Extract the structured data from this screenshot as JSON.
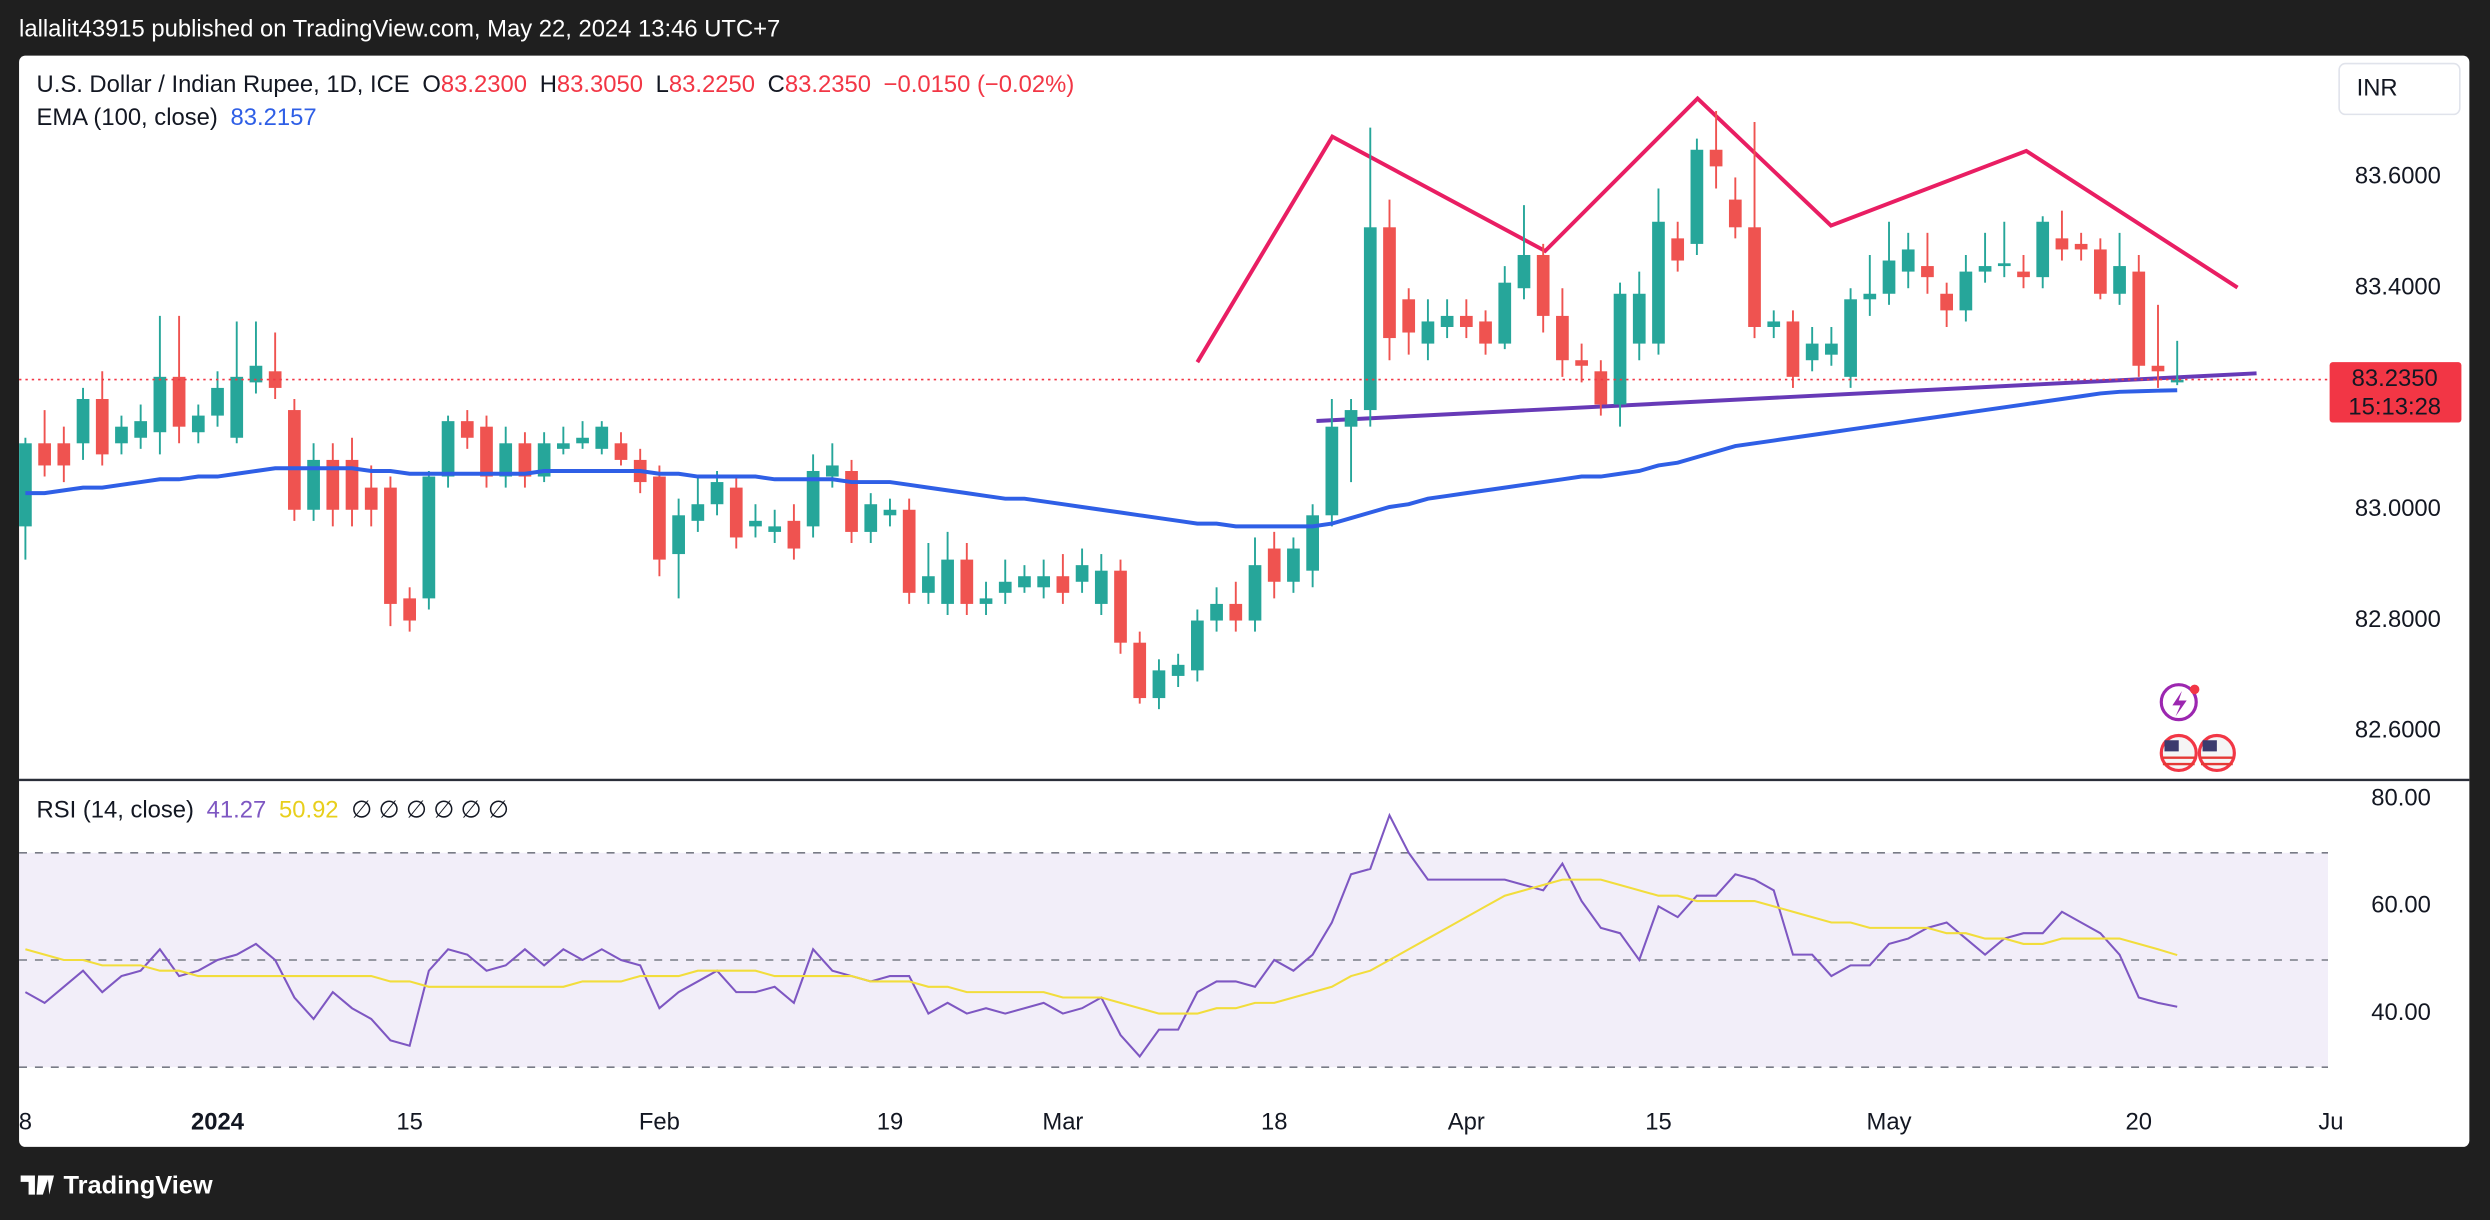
{
  "header": {
    "published": "lallalit43915 published on TradingView.com, May 22, 2024 13:46 UTC+7",
    "brand": "TradingView"
  },
  "chart_data": [
    {
      "type": "candlestick",
      "title": "U.S. Dollar / Indian Rupee, 1D, ICE",
      "ohlc_keys": [
        "O",
        "H",
        "L",
        "C"
      ],
      "ohlc_labels": [
        "83.2300",
        "83.3050",
        "83.2250",
        "83.2350"
      ],
      "change_label": "−0.0150 (−0.02%)",
      "currency": "INR",
      "countdown": "15:13:28",
      "up_color": "#26a69a",
      "down_color": "#ef5350",
      "open": [
        82.97,
        83.12,
        83.12,
        83.12,
        83.2,
        83.12,
        83.13,
        83.14,
        83.24,
        83.14,
        83.17,
        83.13,
        83.23,
        83.25,
        83.18,
        83.0,
        83.09,
        83.09,
        83.04,
        83.04,
        82.84,
        82.84,
        83.06,
        83.16,
        83.15,
        83.06,
        83.12,
        83.06,
        83.11,
        83.12,
        83.11,
        83.12,
        83.09,
        83.06,
        82.92,
        82.98,
        83.01,
        83.04,
        82.97,
        82.96,
        82.98,
        82.97,
        83.06,
        83.07,
        82.96,
        82.99,
        83.0,
        82.85,
        82.83,
        82.91,
        82.83,
        82.85,
        82.86,
        82.86,
        82.88,
        82.87,
        82.83,
        82.89,
        82.76,
        82.66,
        82.7,
        82.71,
        82.8,
        82.83,
        82.8,
        82.93,
        82.87,
        82.89,
        82.99,
        83.15,
        83.18,
        83.51,
        83.38,
        83.3,
        83.33,
        83.35,
        83.34,
        83.3,
        83.4,
        83.46,
        83.35,
        83.27,
        83.25,
        83.19,
        83.3,
        83.3,
        83.49,
        83.48,
        83.65,
        83.56,
        83.51,
        83.33,
        83.34,
        83.27,
        83.28,
        83.24,
        83.38,
        83.39,
        83.43,
        83.44,
        83.39,
        83.36,
        83.43,
        83.44,
        83.43,
        83.42,
        83.49,
        83.48,
        83.47,
        83.39,
        83.43,
        83.26,
        83.23
      ],
      "high": [
        83.13,
        83.18,
        83.15,
        83.22,
        83.25,
        83.17,
        83.19,
        83.35,
        83.35,
        83.19,
        83.25,
        83.34,
        83.34,
        83.32,
        83.2,
        83.12,
        83.12,
        83.13,
        83.08,
        83.06,
        82.86,
        83.07,
        83.17,
        83.18,
        83.17,
        83.15,
        83.14,
        83.14,
        83.15,
        83.16,
        83.16,
        83.14,
        83.11,
        83.08,
        83.02,
        83.06,
        83.07,
        83.06,
        83.01,
        83.0,
        83.01,
        83.1,
        83.12,
        83.09,
        83.03,
        83.02,
        83.02,
        82.94,
        82.96,
        82.94,
        82.87,
        82.91,
        82.9,
        82.91,
        82.92,
        82.93,
        82.92,
        82.91,
        82.78,
        82.73,
        82.74,
        82.82,
        82.86,
        82.87,
        82.95,
        82.96,
        82.95,
        83.01,
        83.2,
        83.2,
        83.69,
        83.56,
        83.4,
        83.38,
        83.38,
        83.38,
        83.36,
        83.44,
        83.55,
        83.48,
        83.4,
        83.3,
        83.27,
        83.41,
        83.43,
        83.58,
        83.52,
        83.67,
        83.72,
        83.6,
        83.7,
        83.36,
        83.36,
        83.33,
        83.33,
        83.4,
        83.46,
        83.52,
        83.5,
        83.5,
        83.41,
        83.46,
        83.5,
        83.52,
        83.46,
        83.53,
        83.54,
        83.5,
        83.49,
        83.5,
        83.46,
        83.37,
        83.305
      ],
      "low": [
        82.91,
        83.06,
        83.05,
        83.09,
        83.08,
        83.1,
        83.11,
        83.1,
        83.12,
        83.12,
        83.15,
        83.12,
        83.21,
        83.2,
        82.98,
        82.98,
        82.97,
        82.97,
        82.97,
        82.79,
        82.78,
        82.82,
        83.04,
        83.11,
        83.04,
        83.04,
        83.04,
        83.05,
        83.1,
        83.11,
        83.1,
        83.08,
        83.03,
        82.88,
        82.84,
        82.96,
        82.99,
        82.93,
        82.95,
        82.94,
        82.91,
        82.95,
        83.04,
        82.94,
        82.94,
        82.97,
        82.83,
        82.83,
        82.81,
        82.81,
        82.81,
        82.83,
        82.85,
        82.84,
        82.83,
        82.85,
        82.81,
        82.74,
        82.65,
        82.64,
        82.68,
        82.69,
        82.78,
        82.78,
        82.78,
        82.84,
        82.85,
        82.86,
        82.97,
        83.05,
        83.15,
        83.27,
        83.28,
        83.27,
        83.31,
        83.31,
        83.28,
        83.29,
        83.38,
        83.32,
        83.24,
        83.23,
        83.17,
        83.15,
        83.27,
        83.28,
        83.43,
        83.46,
        83.58,
        83.49,
        83.31,
        83.31,
        83.22,
        83.25,
        83.26,
        83.22,
        83.35,
        83.37,
        83.4,
        83.39,
        83.33,
        83.34,
        83.41,
        83.42,
        83.4,
        83.4,
        83.45,
        83.45,
        83.38,
        83.37,
        83.24,
        83.22,
        83.225
      ],
      "close": [
        83.12,
        83.08,
        83.08,
        83.2,
        83.1,
        83.15,
        83.16,
        83.24,
        83.15,
        83.17,
        83.22,
        83.24,
        83.26,
        83.22,
        83.0,
        83.09,
        83.0,
        83.0,
        83.0,
        82.83,
        82.8,
        83.06,
        83.16,
        83.13,
        83.06,
        83.12,
        83.06,
        83.12,
        83.12,
        83.13,
        83.15,
        83.09,
        83.05,
        82.91,
        82.99,
        83.01,
        83.05,
        82.95,
        82.98,
        82.97,
        82.93,
        83.07,
        83.08,
        82.96,
        83.01,
        83.0,
        82.85,
        82.88,
        82.91,
        82.83,
        82.84,
        82.87,
        82.88,
        82.88,
        82.85,
        82.9,
        82.89,
        82.76,
        82.66,
        82.71,
        82.72,
        82.8,
        82.83,
        82.8,
        82.9,
        82.87,
        82.93,
        82.99,
        83.15,
        83.18,
        83.51,
        83.31,
        83.32,
        83.34,
        83.35,
        83.33,
        83.3,
        83.41,
        83.46,
        83.35,
        83.27,
        83.26,
        83.19,
        83.39,
        83.39,
        83.52,
        83.45,
        83.65,
        83.62,
        83.51,
        83.33,
        83.34,
        83.24,
        83.3,
        83.3,
        83.38,
        83.39,
        83.45,
        83.47,
        83.42,
        83.36,
        83.43,
        83.44,
        83.445,
        83.42,
        83.52,
        83.47,
        83.47,
        83.39,
        83.44,
        83.26,
        83.25,
        83.235
      ],
      "lines": [
        {
          "name": "EMA (100, close)",
          "color": "#2f5fe6",
          "values": [
            83.03,
            83.03,
            83.035,
            83.04,
            83.04,
            83.045,
            83.05,
            83.055,
            83.055,
            83.06,
            83.06,
            83.065,
            83.07,
            83.075,
            83.075,
            83.075,
            83.075,
            83.075,
            83.07,
            83.07,
            83.065,
            83.065,
            83.065,
            83.065,
            83.065,
            83.065,
            83.065,
            83.07,
            83.07,
            83.07,
            83.07,
            83.07,
            83.07,
            83.065,
            83.065,
            83.06,
            83.06,
            83.06,
            83.06,
            83.055,
            83.055,
            83.055,
            83.055,
            83.05,
            83.05,
            83.05,
            83.045,
            83.04,
            83.035,
            83.03,
            83.025,
            83.02,
            83.02,
            83.015,
            83.01,
            83.005,
            83.0,
            82.995,
            82.99,
            82.985,
            82.98,
            82.975,
            82.975,
            82.97,
            82.97,
            82.97,
            82.97,
            82.97,
            82.975,
            82.985,
            82.995,
            83.005,
            83.01,
            83.02,
            83.025,
            83.03,
            83.035,
            83.04,
            83.045,
            83.05,
            83.055,
            83.06,
            83.06,
            83.065,
            83.07,
            83.08,
            83.085,
            83.095,
            83.105,
            83.115,
            83.12,
            83.125,
            83.13,
            83.135,
            83.14,
            83.145,
            83.15,
            83.155,
            83.16,
            83.165,
            83.17,
            83.175,
            83.18,
            83.185,
            83.19,
            83.195,
            83.2,
            83.205,
            83.21,
            83.213,
            83.214,
            83.215,
            83.2157
          ]
        }
      ],
      "xlim": [
        -0.33,
        119.85
      ],
      "xticks": [
        {
          "value": 0,
          "label": "8"
        },
        {
          "value": 10,
          "label": "2024"
        },
        {
          "value": 20,
          "label": "15"
        },
        {
          "value": 33,
          "label": "Feb"
        },
        {
          "value": 45,
          "label": "19"
        },
        {
          "value": 54,
          "label": "Mar"
        },
        {
          "value": 65,
          "label": "18"
        },
        {
          "value": 75,
          "label": "Apr"
        },
        {
          "value": 85,
          "label": "15"
        },
        {
          "value": 97,
          "label": "May"
        },
        {
          "value": 110,
          "label": "20"
        },
        {
          "value": 120,
          "label": "Ju"
        }
      ],
      "ylim": [
        82.515,
        83.82
      ],
      "yticks": [
        {
          "value": 82.6,
          "label": "82.6000"
        },
        {
          "value": 82.8,
          "label": "82.8000"
        },
        {
          "value": 83.0,
          "label": "83.0000"
        },
        {
          "value": 83.4,
          "label": "83.4000"
        },
        {
          "value": 83.6,
          "label": "83.6000"
        }
      ],
      "grid": false
    },
    {
      "type": "line",
      "title": "RSI (14, close)",
      "na_symbols": "∅ ∅ ∅ ∅ ∅ ∅",
      "series": [
        {
          "color": "#7e57c2",
          "values": [
            44,
            42,
            45,
            48,
            44,
            47,
            48,
            52,
            47,
            48,
            50,
            51,
            53,
            50,
            43,
            39,
            44,
            41,
            39,
            35,
            34,
            48,
            52,
            51,
            48,
            49,
            52,
            49,
            52,
            50,
            52,
            50,
            49,
            41,
            44,
            46,
            48,
            44,
            44,
            45,
            42,
            52,
            48,
            47,
            46,
            47,
            47,
            40,
            42,
            40,
            41,
            40,
            41,
            42,
            40,
            41,
            43,
            36,
            32,
            37,
            37,
            44,
            46,
            46,
            45,
            50,
            48,
            51,
            57,
            66,
            67,
            77,
            70,
            65,
            65,
            65,
            65,
            65,
            64,
            63,
            68,
            61,
            56,
            55,
            50,
            60,
            58,
            62,
            62,
            66,
            65,
            63,
            51,
            51,
            47,
            49,
            49,
            53,
            54,
            56,
            57,
            54,
            51,
            54,
            55,
            55,
            59,
            57,
            55,
            51,
            43,
            42,
            41.27
          ]
        },
        {
          "color": "#f2dd3c",
          "values": [
            52,
            51,
            50,
            50,
            49,
            49,
            49,
            48,
            48,
            47,
            47,
            47,
            47,
            47,
            47,
            47,
            47,
            47,
            47,
            46,
            46,
            45,
            45,
            45,
            45,
            45,
            45,
            45,
            45,
            46,
            46,
            46,
            47,
            47,
            47,
            48,
            48,
            48,
            48,
            47,
            47,
            47,
            47,
            47,
            46,
            46,
            46,
            45,
            45,
            44,
            44,
            44,
            44,
            44,
            43,
            43,
            43,
            42,
            41,
            40,
            40,
            40,
            41,
            41,
            42,
            42,
            43,
            44,
            45,
            47,
            48,
            50,
            52,
            54,
            56,
            58,
            60,
            62,
            63,
            64,
            65,
            65,
            65,
            64,
            63,
            62,
            62,
            61,
            61,
            61,
            61,
            60,
            59,
            58,
            57,
            57,
            56,
            56,
            56,
            56,
            55,
            55,
            54,
            54,
            53,
            53,
            54,
            54,
            54,
            54,
            53,
            52,
            50.92
          ]
        }
      ],
      "bands": [
        70,
        50,
        30
      ],
      "ylim": [
        24.6,
        83.3
      ],
      "yticks": [
        {
          "value": 40,
          "label": "40.00"
        },
        {
          "value": 60,
          "label": "60.00"
        },
        {
          "value": 80,
          "label": "80.00"
        }
      ]
    }
  ]
}
